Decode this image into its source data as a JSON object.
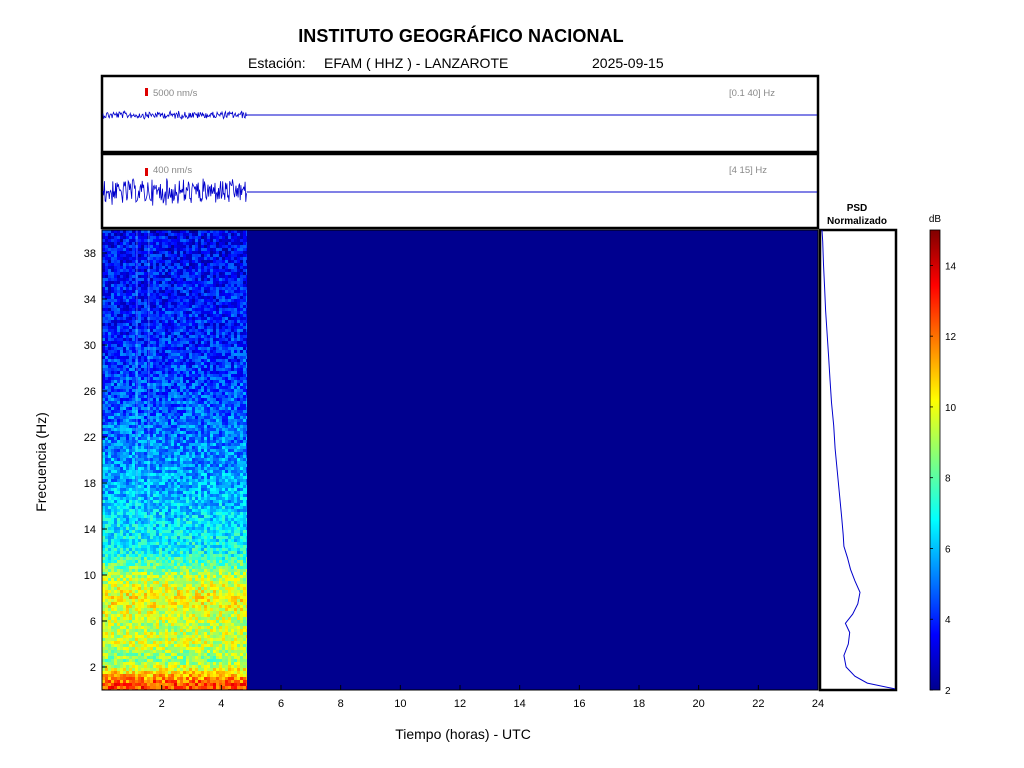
{
  "header": {
    "title": "INSTITUTO GEOGRÁFICO NACIONAL",
    "station_label": "Estación:",
    "station": "EFAM ( HHZ ) - LANZAROTE",
    "date": "2025-09-15"
  },
  "chart_data": [
    {
      "type": "line",
      "name": "seismogram-broadband",
      "scale_label": "5000 nm/s",
      "band_label": "[0.1 40] Hz",
      "x_range_hours": [
        0,
        24
      ],
      "data_end_hours": 4.85,
      "signal_amplitude_relative": 0.12
    },
    {
      "type": "line",
      "name": "seismogram-filtered",
      "scale_label": "400 nm/s",
      "band_label": "[4 15] Hz",
      "x_range_hours": [
        0,
        24
      ],
      "data_end_hours": 4.85,
      "signal_amplitude_relative": 0.42
    },
    {
      "type": "heatmap",
      "name": "spectrogram",
      "xlabel": "Tiempo (horas) - UTC",
      "ylabel": "Frecuencia  (Hz)",
      "xlim": [
        0,
        24
      ],
      "ylim": [
        0,
        40
      ],
      "xticks": [
        2,
        4,
        6,
        8,
        10,
        12,
        14,
        16,
        18,
        20,
        22,
        24
      ],
      "yticks": [
        2,
        6,
        10,
        14,
        18,
        22,
        26,
        30,
        34,
        38
      ],
      "data_end_hours": 4.85,
      "no_data_level_db": 2,
      "spectral_profile_db": [
        {
          "f": 0.5,
          "db": 12.5
        },
        {
          "f": 1.5,
          "db": 10.5
        },
        {
          "f": 2.5,
          "db": 8.5
        },
        {
          "f": 4,
          "db": 9.5
        },
        {
          "f": 6,
          "db": 9.3
        },
        {
          "f": 8,
          "db": 10.2
        },
        {
          "f": 10,
          "db": 9.0
        },
        {
          "f": 12,
          "db": 7.0
        },
        {
          "f": 14,
          "db": 6.6
        },
        {
          "f": 18,
          "db": 5.8
        },
        {
          "f": 22,
          "db": 5.2
        },
        {
          "f": 26,
          "db": 4.6
        },
        {
          "f": 30,
          "db": 4.2
        },
        {
          "f": 34,
          "db": 3.9
        },
        {
          "f": 40,
          "db": 3.6
        }
      ]
    },
    {
      "type": "line",
      "name": "psd-normalized",
      "title": "PSD",
      "subtitle": "Normalizado",
      "xlim": [
        0,
        1
      ],
      "ylim": [
        0,
        40
      ],
      "points": [
        {
          "f": 0.1,
          "p": 1.0
        },
        {
          "f": 0.6,
          "p": 0.62
        },
        {
          "f": 1.2,
          "p": 0.45
        },
        {
          "f": 2.0,
          "p": 0.33
        },
        {
          "f": 3.0,
          "p": 0.3
        },
        {
          "f": 4.0,
          "p": 0.36
        },
        {
          "f": 5.0,
          "p": 0.38
        },
        {
          "f": 5.8,
          "p": 0.32
        },
        {
          "f": 6.6,
          "p": 0.42
        },
        {
          "f": 7.5,
          "p": 0.49
        },
        {
          "f": 8.5,
          "p": 0.52
        },
        {
          "f": 9.5,
          "p": 0.45
        },
        {
          "f": 10.5,
          "p": 0.39
        },
        {
          "f": 11.5,
          "p": 0.35
        },
        {
          "f": 12.5,
          "p": 0.3
        },
        {
          "f": 13.5,
          "p": 0.29
        },
        {
          "f": 15.0,
          "p": 0.27
        },
        {
          "f": 17.0,
          "p": 0.24
        },
        {
          "f": 19.0,
          "p": 0.21
        },
        {
          "f": 21.0,
          "p": 0.18
        },
        {
          "f": 23.0,
          "p": 0.16
        },
        {
          "f": 25.0,
          "p": 0.13
        },
        {
          "f": 27.0,
          "p": 0.11
        },
        {
          "f": 29.0,
          "p": 0.09
        },
        {
          "f": 31.0,
          "p": 0.07
        },
        {
          "f": 33.0,
          "p": 0.05
        },
        {
          "f": 35.0,
          "p": 0.035
        },
        {
          "f": 37.0,
          "p": 0.02
        },
        {
          "f": 39.0,
          "p": 0.01
        },
        {
          "f": 40.0,
          "p": 0.0
        }
      ]
    },
    {
      "type": "colorbar",
      "name": "db-colorbar",
      "label": "dB",
      "range": [
        2,
        15
      ],
      "ticks": [
        2,
        4,
        6,
        8,
        10,
        12,
        14
      ]
    }
  ],
  "colors": {
    "trace": "#0000cc",
    "marker": "#dd0000",
    "frame": "#000000",
    "band_label": "#888888"
  }
}
